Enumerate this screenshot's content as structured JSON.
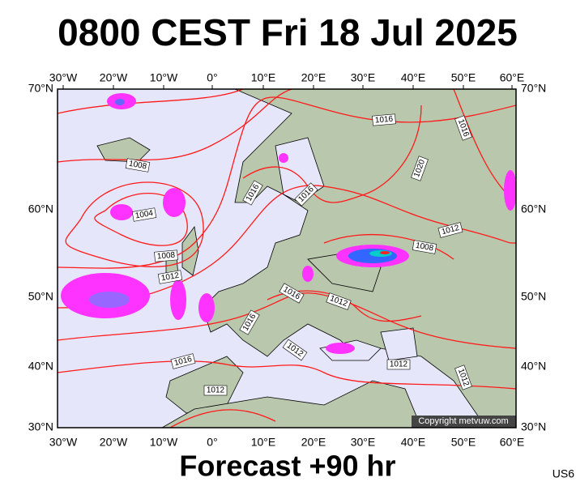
{
  "header": {
    "title": "0800 CEST Fri 18 Jul 2025"
  },
  "map": {
    "lon_labels": [
      "30°W",
      "20°W",
      "10°W",
      "0°",
      "10°E",
      "20°E",
      "30°E",
      "40°E",
      "50°E",
      "60°E"
    ],
    "lat_labels": [
      "70°N",
      "60°N",
      "50°N",
      "40°N",
      "30°N"
    ],
    "isobar_labels": [
      "1016",
      "1016",
      "1008",
      "1020",
      "1016",
      "1016",
      "1004",
      "1012",
      "1008",
      "1008",
      "1012",
      "1016",
      "1012",
      "1016",
      "1012",
      "1016",
      "1012",
      "1012",
      "1012"
    ],
    "copyright": "Copyright metvuw.com"
  },
  "footer": {
    "forecast": "Forecast +90 hr",
    "region": "US6"
  }
}
